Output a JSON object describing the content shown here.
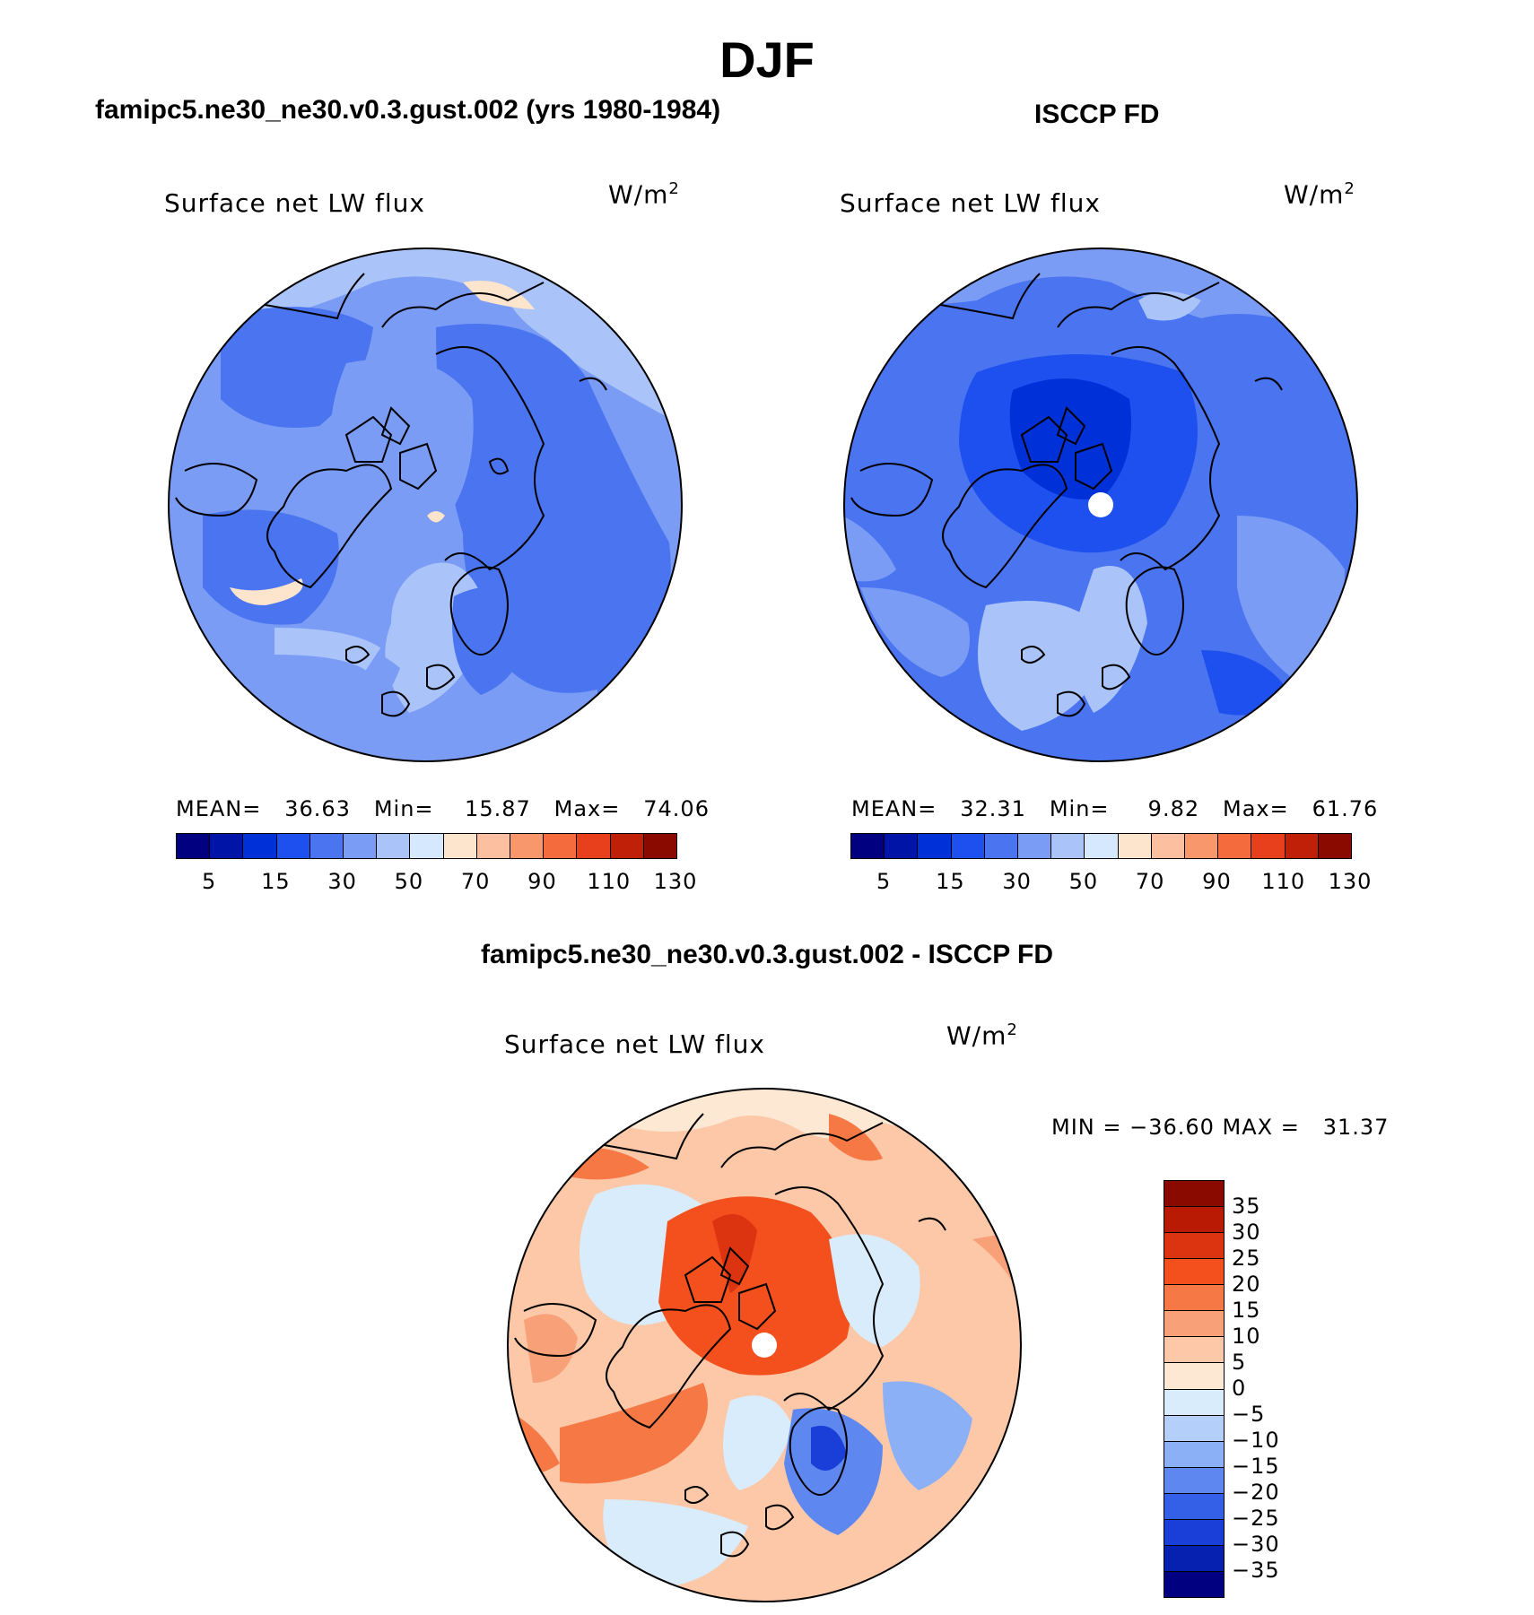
{
  "figure_title": "DJF",
  "panels": [
    {
      "header": "famipc5.ne30_ne30.v0.3.gust.002 (yrs 1980-1984)",
      "label": "Surface net LW flux",
      "units_base": "W/m",
      "units_sup": "2",
      "stats": "MEAN=   36.63   Min=    15.87   Max=   74.06",
      "colorbar": {
        "colors": [
          "#000080",
          "#0015a8",
          "#0030d8",
          "#1e50f0",
          "#4a74f0",
          "#7a9cf5",
          "#aac4fa",
          "#d6e8fd",
          "#fde4cc",
          "#fcc0a0",
          "#f8966c",
          "#f46c3e",
          "#e8401c",
          "#c02008",
          "#8a0a00"
        ],
        "labels": [
          "5",
          "15",
          "30",
          "50",
          "70",
          "90",
          "110",
          "130"
        ]
      }
    },
    {
      "header": "ISCCP FD",
      "label": "Surface net LW flux",
      "units_base": "W/m",
      "units_sup": "2",
      "stats": "MEAN=   32.31   Min=     9.82   Max=   61.76",
      "colorbar": {
        "colors": [
          "#000080",
          "#0015a8",
          "#0030d8",
          "#1e50f0",
          "#4a74f0",
          "#7a9cf5",
          "#aac4fa",
          "#d6e8fd",
          "#fde4cc",
          "#fcc0a0",
          "#f8966c",
          "#f46c3e",
          "#e8401c",
          "#c02008",
          "#8a0a00"
        ],
        "labels": [
          "5",
          "15",
          "30",
          "50",
          "70",
          "90",
          "110",
          "130"
        ]
      }
    },
    {
      "header": "famipc5.ne30_ne30.v0.3.gust.002 - ISCCP FD",
      "label": "Surface net LW flux",
      "units_base": "W/m",
      "units_sup": "2",
      "minmax": "MIN = −36.60 MAX =   31.37",
      "colorbar": {
        "colors": [
          "#8a0a00",
          "#b81a04",
          "#dc3410",
          "#f4501e",
          "#f67844",
          "#f8a078",
          "#fcc8a8",
          "#fde8d4",
          "#d8ecfc",
          "#b4d0fa",
          "#8cb0f6",
          "#5e88f0",
          "#3460e8",
          "#1a3ed8",
          "#0620b0",
          "#000080"
        ],
        "labels": [
          "35",
          "30",
          "25",
          "20",
          "15",
          "10",
          "5",
          "0",
          "−5",
          "−10",
          "−15",
          "−20",
          "−25",
          "−30",
          "−35"
        ]
      }
    }
  ]
}
